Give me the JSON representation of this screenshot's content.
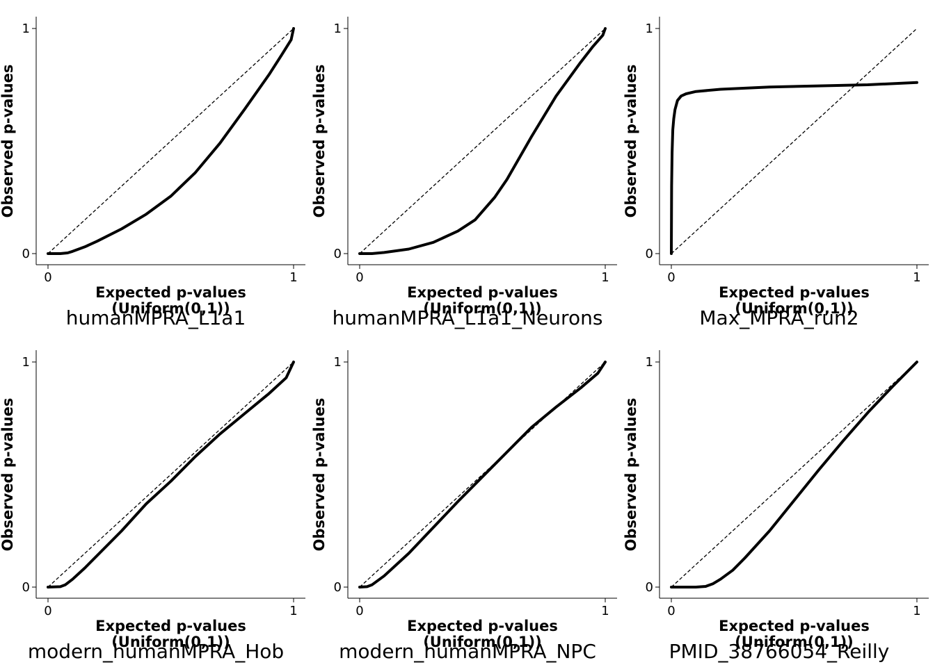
{
  "chart_data": [
    {
      "type": "line",
      "title": "humanMPRA_L1a1",
      "xlabel_line1": "Expected p-values",
      "xlabel_line2": "(Uniform(0,1))",
      "ylabel": "Observed p-values",
      "xlim": [
        0,
        1
      ],
      "ylim": [
        0,
        1
      ],
      "xticks": [
        "0",
        "1"
      ],
      "yticks": [
        "0",
        "1"
      ],
      "grid": false,
      "reference_line": "y=x",
      "series": [
        {
          "x": [
            0,
            0.05,
            0.08,
            0.1,
            0.15,
            0.2,
            0.3,
            0.4,
            0.5,
            0.6,
            0.7,
            0.8,
            0.9,
            0.95,
            0.99,
            1.0
          ],
          "y": [
            0,
            0,
            0.003,
            0.01,
            0.03,
            0.055,
            0.11,
            0.175,
            0.255,
            0.36,
            0.49,
            0.64,
            0.795,
            0.88,
            0.95,
            1.0
          ]
        }
      ]
    },
    {
      "type": "line",
      "title": "humanMPRA_L1a1_Neurons",
      "xlabel_line1": "Expected p-values",
      "xlabel_line2": "(Uniform(0,1))",
      "ylabel": "Observed p-values",
      "xlim": [
        0,
        1
      ],
      "ylim": [
        0,
        1
      ],
      "xticks": [
        "0",
        "1"
      ],
      "yticks": [
        "0",
        "1"
      ],
      "grid": false,
      "reference_line": "y=x",
      "series": [
        {
          "x": [
            0,
            0.05,
            0.1,
            0.2,
            0.3,
            0.4,
            0.47,
            0.55,
            0.6,
            0.7,
            0.8,
            0.9,
            0.95,
            0.99,
            1.0
          ],
          "y": [
            0,
            0,
            0.005,
            0.02,
            0.05,
            0.1,
            0.15,
            0.25,
            0.33,
            0.52,
            0.7,
            0.85,
            0.92,
            0.97,
            1.0
          ]
        }
      ]
    },
    {
      "type": "line",
      "title": "Max_MPRA_run2",
      "xlabel_line1": "Expected p-values",
      "xlabel_line2": "(Uniform(0,1))",
      "ylabel": "Observed p-values",
      "xlim": [
        0,
        1
      ],
      "ylim": [
        0,
        1
      ],
      "xticks": [
        "0",
        "1"
      ],
      "yticks": [
        "0",
        "1"
      ],
      "grid": false,
      "reference_line": "y=x",
      "series": [
        {
          "x": [
            0,
            0.001,
            0.003,
            0.006,
            0.01,
            0.015,
            0.025,
            0.04,
            0.06,
            0.1,
            0.2,
            0.4,
            0.6,
            0.8,
            1.0
          ],
          "y": [
            0,
            0.3,
            0.45,
            0.55,
            0.6,
            0.64,
            0.68,
            0.7,
            0.71,
            0.72,
            0.73,
            0.74,
            0.745,
            0.75,
            0.76
          ]
        }
      ]
    },
    {
      "type": "line",
      "title": "modern_humanMPRA_Hob",
      "xlabel_line1": "Expected p-values",
      "xlabel_line2": "(Uniform(0,1))",
      "ylabel": "Observed p-values",
      "xlim": [
        0,
        1
      ],
      "ylim": [
        0,
        1
      ],
      "xticks": [
        "0",
        "1"
      ],
      "yticks": [
        "0",
        "1"
      ],
      "grid": false,
      "reference_line": "y=x",
      "series": [
        {
          "x": [
            0,
            0.05,
            0.07,
            0.1,
            0.15,
            0.2,
            0.3,
            0.4,
            0.5,
            0.6,
            0.7,
            0.8,
            0.9,
            0.97,
            1.0
          ],
          "y": [
            0,
            0.002,
            0.01,
            0.035,
            0.085,
            0.14,
            0.25,
            0.37,
            0.47,
            0.58,
            0.68,
            0.77,
            0.86,
            0.93,
            1.0
          ]
        }
      ]
    },
    {
      "type": "line",
      "title": "modern_humanMPRA_NPC",
      "xlabel_line1": "Expected p-values",
      "xlabel_line2": "(Uniform(0,1))",
      "ylabel": "Observed p-values",
      "xlim": [
        0,
        1
      ],
      "ylim": [
        0,
        1
      ],
      "xticks": [
        "0",
        "1"
      ],
      "yticks": [
        "0",
        "1"
      ],
      "grid": false,
      "reference_line": "y=x",
      "series": [
        {
          "x": [
            0,
            0.03,
            0.05,
            0.1,
            0.2,
            0.3,
            0.4,
            0.5,
            0.6,
            0.7,
            0.8,
            0.9,
            0.97,
            1.0
          ],
          "y": [
            0,
            0.002,
            0.01,
            0.05,
            0.15,
            0.265,
            0.38,
            0.49,
            0.6,
            0.71,
            0.8,
            0.885,
            0.95,
            1.0
          ]
        }
      ]
    },
    {
      "type": "line",
      "title": "PMID_38766054_Reilly",
      "xlabel_line1": "Expected p-values",
      "xlabel_line2": "(Uniform(0,1))",
      "ylabel": "Observed p-values",
      "xlim": [
        0,
        1
      ],
      "ylim": [
        0,
        1
      ],
      "xticks": [
        "0",
        "1"
      ],
      "yticks": [
        "0",
        "1"
      ],
      "grid": false,
      "reference_line": "y=x",
      "series": [
        {
          "x": [
            0,
            0.1,
            0.14,
            0.17,
            0.2,
            0.25,
            0.3,
            0.4,
            0.5,
            0.6,
            0.7,
            0.8,
            0.9,
            1.0
          ],
          "y": [
            0,
            0,
            0.003,
            0.015,
            0.035,
            0.075,
            0.13,
            0.25,
            0.385,
            0.52,
            0.65,
            0.775,
            0.89,
            1.0
          ]
        }
      ]
    }
  ]
}
